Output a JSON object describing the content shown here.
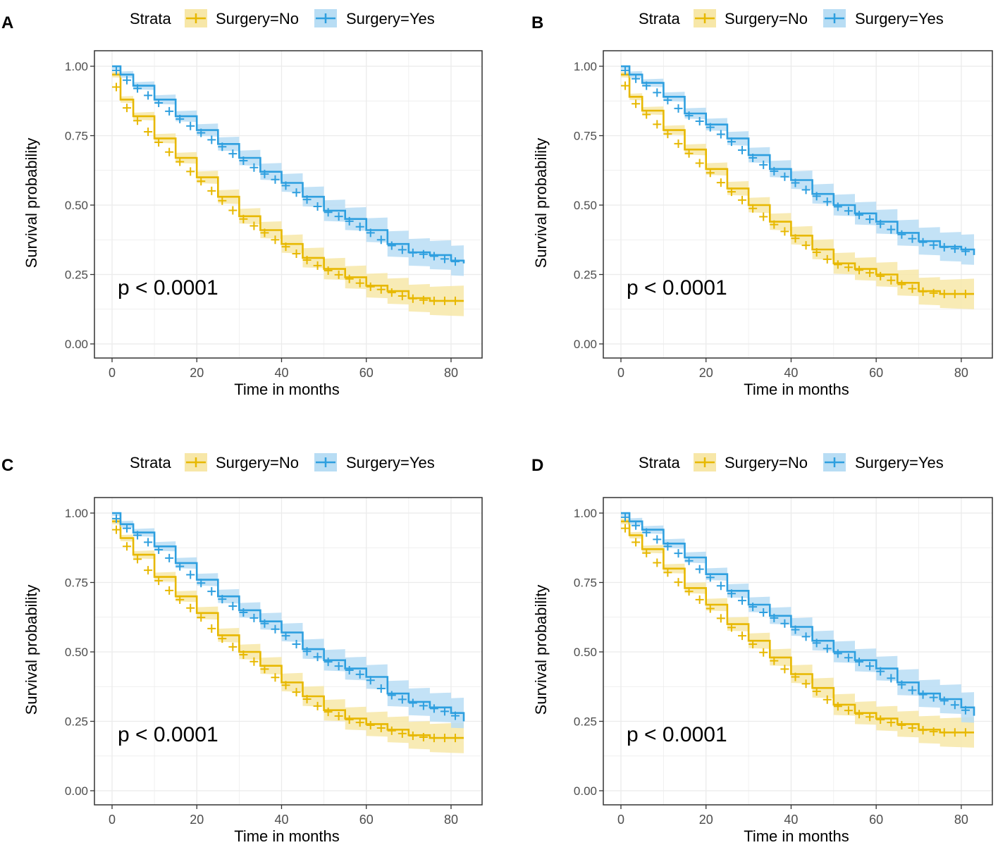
{
  "figure": {
    "colors": {
      "no": "#E7B800",
      "yes": "#2E9FDF",
      "no_band": "#F7E7A8",
      "yes_band": "#B8DDF4",
      "grid": "#EBEBEB",
      "frame": "#333333"
    },
    "legend_title": "Strata"
  },
  "chart_data": [
    {
      "panel_label": "A",
      "type": "line",
      "title": "",
      "legend_title": "Strata",
      "xlabel": "Time in months",
      "ylabel": "Survival probability",
      "xlim": [
        0,
        83
      ],
      "ylim": [
        0,
        1
      ],
      "xticks": [
        0,
        20,
        40,
        60,
        80
      ],
      "yticks": [
        "0.00",
        "0.25",
        "0.50",
        "0.75",
        "1.00"
      ],
      "annotation": "p < 0.0001",
      "series": [
        {
          "name": "Surgery=No",
          "x": [
            0,
            2,
            5,
            10,
            15,
            20,
            25,
            30,
            35,
            40,
            45,
            50,
            55,
            60,
            65,
            70,
            75,
            80,
            83
          ],
          "values": [
            0.97,
            0.88,
            0.82,
            0.74,
            0.67,
            0.6,
            0.53,
            0.46,
            0.41,
            0.36,
            0.31,
            0.27,
            0.24,
            0.21,
            0.19,
            0.165,
            0.155,
            0.155,
            0.155
          ]
        },
        {
          "name": "Surgery=Yes",
          "x": [
            0,
            2,
            5,
            10,
            15,
            20,
            25,
            30,
            35,
            40,
            45,
            50,
            55,
            60,
            65,
            70,
            75,
            80,
            83
          ],
          "values": [
            1.0,
            0.97,
            0.93,
            0.88,
            0.82,
            0.77,
            0.72,
            0.67,
            0.62,
            0.58,
            0.53,
            0.48,
            0.45,
            0.41,
            0.36,
            0.33,
            0.32,
            0.3,
            0.29
          ]
        }
      ]
    },
    {
      "panel_label": "B",
      "type": "line",
      "title": "",
      "legend_title": "Strata",
      "xlabel": "Time in months",
      "ylabel": "Survival probability",
      "xlim": [
        0,
        83
      ],
      "ylim": [
        0,
        1
      ],
      "xticks": [
        0,
        20,
        40,
        60,
        80
      ],
      "yticks": [
        "0.00",
        "0.25",
        "0.50",
        "0.75",
        "1.00"
      ],
      "annotation": "p < 0.0001",
      "series": [
        {
          "name": "Surgery=No",
          "x": [
            0,
            2,
            5,
            10,
            15,
            20,
            25,
            30,
            35,
            40,
            45,
            50,
            55,
            60,
            65,
            70,
            75,
            80,
            83
          ],
          "values": [
            0.97,
            0.89,
            0.84,
            0.77,
            0.7,
            0.63,
            0.56,
            0.5,
            0.44,
            0.39,
            0.34,
            0.29,
            0.27,
            0.25,
            0.22,
            0.19,
            0.18,
            0.18,
            0.18
          ]
        },
        {
          "name": "Surgery=Yes",
          "x": [
            0,
            2,
            5,
            10,
            15,
            20,
            25,
            30,
            35,
            40,
            45,
            50,
            55,
            60,
            65,
            70,
            75,
            80,
            83
          ],
          "values": [
            1.0,
            0.97,
            0.94,
            0.89,
            0.83,
            0.79,
            0.74,
            0.68,
            0.63,
            0.59,
            0.54,
            0.5,
            0.47,
            0.44,
            0.4,
            0.37,
            0.35,
            0.34,
            0.32
          ]
        }
      ]
    },
    {
      "panel_label": "C",
      "type": "line",
      "title": "",
      "legend_title": "Strata",
      "xlabel": "Time in months",
      "ylabel": "Survival probability",
      "xlim": [
        0,
        83
      ],
      "ylim": [
        0,
        1
      ],
      "xticks": [
        0,
        20,
        40,
        60,
        80
      ],
      "yticks": [
        "0.00",
        "0.25",
        "0.50",
        "0.75",
        "1.00"
      ],
      "annotation": "p < 0.0001",
      "series": [
        {
          "name": "Surgery=No",
          "x": [
            0,
            2,
            5,
            10,
            15,
            20,
            25,
            30,
            35,
            40,
            45,
            50,
            55,
            60,
            65,
            70,
            75,
            80,
            83
          ],
          "values": [
            0.97,
            0.91,
            0.85,
            0.77,
            0.7,
            0.64,
            0.56,
            0.5,
            0.45,
            0.39,
            0.34,
            0.29,
            0.26,
            0.24,
            0.22,
            0.2,
            0.19,
            0.19,
            0.19
          ]
        },
        {
          "name": "Surgery=Yes",
          "x": [
            0,
            2,
            5,
            10,
            15,
            20,
            25,
            30,
            35,
            40,
            45,
            50,
            55,
            60,
            65,
            70,
            75,
            80,
            83
          ],
          "values": [
            1.0,
            0.96,
            0.93,
            0.88,
            0.82,
            0.76,
            0.7,
            0.65,
            0.61,
            0.57,
            0.51,
            0.47,
            0.44,
            0.41,
            0.35,
            0.32,
            0.3,
            0.28,
            0.25
          ]
        }
      ]
    },
    {
      "panel_label": "D",
      "type": "line",
      "title": "",
      "legend_title": "Strata",
      "xlabel": "Time in months",
      "ylabel": "Survival probability",
      "xlim": [
        0,
        83
      ],
      "ylim": [
        0,
        1
      ],
      "xticks": [
        0,
        20,
        40,
        60,
        80
      ],
      "yticks": [
        "0.00",
        "0.25",
        "0.50",
        "0.75",
        "1.00"
      ],
      "annotation": "p < 0.0001",
      "series": [
        {
          "name": "Surgery=No",
          "x": [
            0,
            2,
            5,
            10,
            15,
            20,
            25,
            30,
            35,
            40,
            45,
            50,
            55,
            60,
            65,
            70,
            75,
            80,
            83
          ],
          "values": [
            0.97,
            0.92,
            0.87,
            0.8,
            0.73,
            0.67,
            0.6,
            0.54,
            0.48,
            0.42,
            0.37,
            0.31,
            0.28,
            0.26,
            0.24,
            0.22,
            0.21,
            0.21,
            0.21
          ]
        },
        {
          "name": "Surgery=Yes",
          "x": [
            0,
            2,
            5,
            10,
            15,
            20,
            25,
            30,
            35,
            40,
            45,
            50,
            55,
            60,
            65,
            70,
            75,
            80,
            83
          ],
          "values": [
            1.0,
            0.97,
            0.94,
            0.89,
            0.84,
            0.78,
            0.72,
            0.67,
            0.63,
            0.59,
            0.54,
            0.5,
            0.47,
            0.44,
            0.39,
            0.35,
            0.33,
            0.3,
            0.27
          ]
        }
      ]
    }
  ]
}
